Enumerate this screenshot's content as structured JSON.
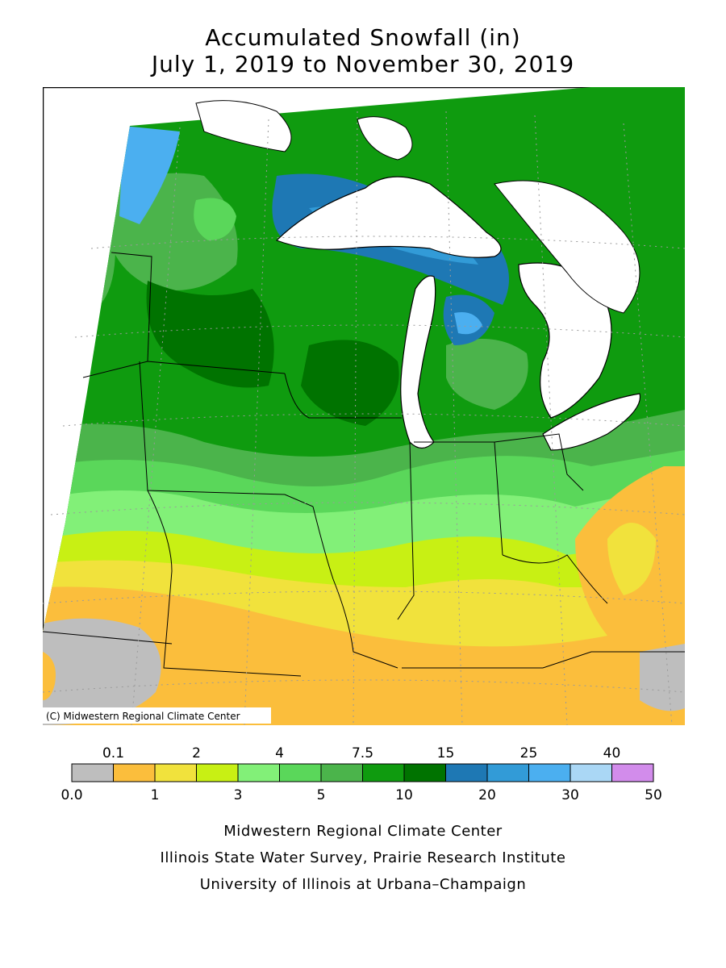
{
  "title_line1": "Accumulated Snowfall (in)",
  "title_line2": "July 1, 2019 to November 30, 2019",
  "map": {
    "copyright": "(C) Midwestern Regional Climate Center"
  },
  "legend": {
    "upper_labels": [
      "0.1",
      "2",
      "4",
      "7.5",
      "15",
      "25",
      "40"
    ],
    "lower_labels": [
      "0.0",
      "1",
      "3",
      "5",
      "10",
      "20",
      "30",
      "50"
    ],
    "colors": [
      "#bebebe",
      "#fbbe3c",
      "#f1e23c",
      "#c8f014",
      "#82f078",
      "#5ad75a",
      "#4bb44b",
      "#0f9b0f",
      "#007300",
      "#1e78b4",
      "#329bd7",
      "#4baff0",
      "#aad7f5",
      "#d28ceb"
    ]
  },
  "credits": {
    "line1": "Midwestern Regional Climate Center",
    "line2": "Illinois State Water Survey, Prairie Research Institute",
    "line3": "University of Illinois at Urbana–Champaign"
  }
}
